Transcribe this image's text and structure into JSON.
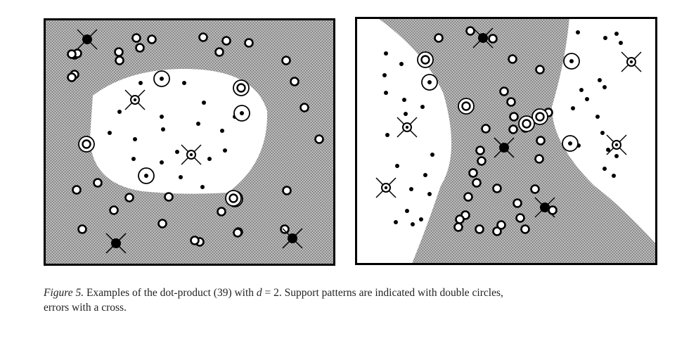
{
  "figure": {
    "panels": [
      {
        "id": "left",
        "description": "Elliptical decision region (white) surrounded by grey class region",
        "class_dot_count": 20,
        "class_circle_count": 32,
        "support_pattern_count": 7,
        "error_count": 6
      },
      {
        "id": "right",
        "description": "Grey band (hyperbolic-shaped) separating two white regions",
        "class_dot_count": 34,
        "class_circle_count": 31,
        "support_pattern_count": 6,
        "error_count": 7
      }
    ],
    "colors": {
      "background": "#ffffff",
      "region_grey": "#a6a6a6",
      "region_white": "#ffffff",
      "marker": "#000000"
    },
    "caption": {
      "label": "Figure 5.",
      "text_before_var": "Examples of the dot-product (39) with",
      "variable": "d",
      "text_after_var": "= 2.  Support patterns are indicated with double circles,",
      "line2": "errors with a cross."
    }
  }
}
